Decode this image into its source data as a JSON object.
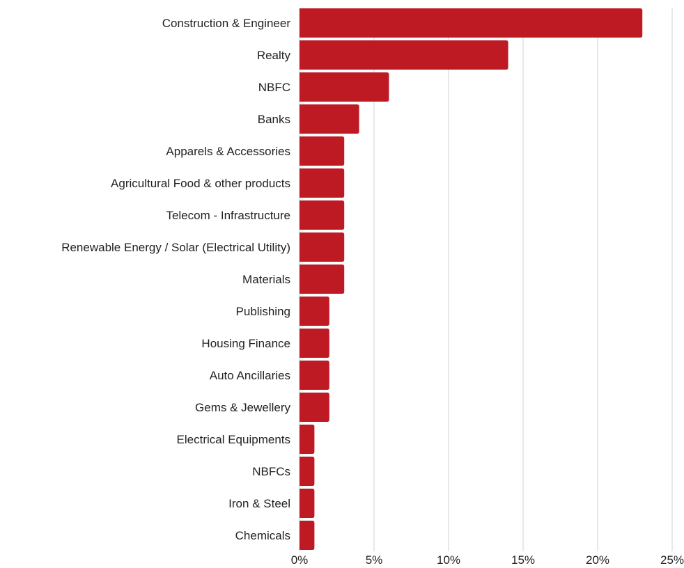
{
  "chart_data": {
    "type": "bar",
    "orientation": "horizontal",
    "categories": [
      "Construction & Engineer",
      "Realty",
      "NBFC",
      "Banks",
      "Apparels & Accessories",
      "Agricultural Food & other products",
      "Telecom - Infrastructure",
      "Renewable Energy / Solar (Electrical Utility)",
      "Materials",
      "Publishing",
      "Housing Finance",
      "Auto Ancillaries",
      "Gems & Jewellery",
      "Electrical Equipments",
      "NBFCs",
      "Iron & Steel",
      "Chemicals"
    ],
    "values": [
      23,
      14,
      6,
      4,
      3,
      3,
      3,
      3,
      3,
      2,
      2,
      2,
      2,
      1,
      1,
      1,
      1
    ],
    "xlim": [
      0,
      25
    ],
    "x_ticks": [
      0,
      5,
      10,
      15,
      20,
      25
    ],
    "x_tick_labels": [
      "0%",
      "5%",
      "10%",
      "15%",
      "20%",
      "25%"
    ],
    "grid": "vertical",
    "bar_color": "#be1a24",
    "gridline_color": "#d0d0d0"
  }
}
